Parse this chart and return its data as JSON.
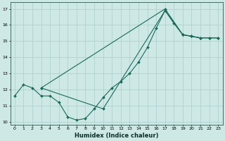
{
  "xlabel": "Humidex (Indice chaleur)",
  "bg_color": "#cde8e5",
  "line_color": "#1a6b5a",
  "grid_color": "#aacfcc",
  "xlim": [
    -0.5,
    23.5
  ],
  "ylim": [
    9.8,
    17.4
  ],
  "xticks": [
    0,
    1,
    2,
    3,
    4,
    5,
    6,
    7,
    8,
    9,
    10,
    11,
    12,
    13,
    14,
    15,
    16,
    17,
    18,
    19,
    20,
    21,
    22,
    23
  ],
  "yticks": [
    10,
    11,
    12,
    13,
    14,
    15,
    16,
    17
  ],
  "series1_x": [
    0,
    1,
    2,
    3,
    4,
    5,
    6,
    7,
    8,
    9,
    10,
    11,
    12,
    13,
    14,
    15,
    16,
    17,
    18,
    19,
    20,
    21
  ],
  "series1_y": [
    11.6,
    12.3,
    12.1,
    11.6,
    11.6,
    11.2,
    10.3,
    10.1,
    10.2,
    10.8,
    11.5,
    12.1,
    12.5,
    13.0,
    13.7,
    14.6,
    15.8,
    16.9,
    16.1,
    15.4,
    15.3,
    15.2
  ],
  "series2_x": [
    3,
    17,
    19,
    20,
    21,
    22,
    23
  ],
  "series2_y": [
    12.1,
    17.0,
    15.4,
    15.3,
    15.2,
    15.2,
    15.2
  ],
  "series3_x": [
    3,
    10,
    17,
    19,
    20,
    21,
    22,
    23
  ],
  "series3_y": [
    12.1,
    10.8,
    16.9,
    15.4,
    15.3,
    15.2,
    15.2,
    15.2
  ]
}
